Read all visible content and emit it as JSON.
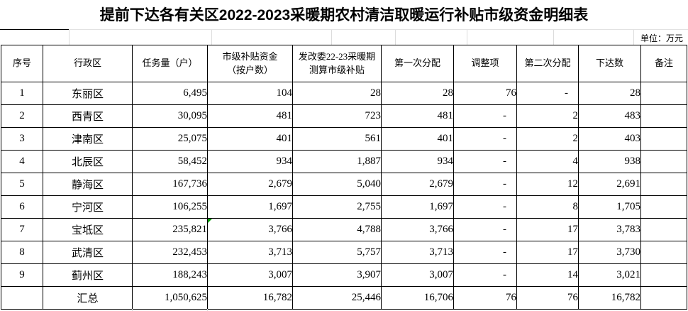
{
  "title": "提前下达各有关区2022-2023采暖期农村清洁取暖运行补贴市级资金明细表",
  "unit_label": "单位：万元",
  "table": {
    "columns": [
      "序号",
      "行政区",
      "任务量（户）",
      "市级补贴资金\n（按户数）",
      "发改委22-23采暖期\n测算市级补贴",
      "第一次分配",
      "调整项",
      "第二次分配",
      "下达数",
      "备注"
    ],
    "rows": [
      [
        "1",
        "东丽区",
        "6,495",
        "104",
        "28",
        "28",
        "76",
        "-",
        "28",
        ""
      ],
      [
        "2",
        "西青区",
        "30,095",
        "481",
        "723",
        "481",
        "-",
        "2",
        "483",
        ""
      ],
      [
        "3",
        "津南区",
        "25,075",
        "401",
        "561",
        "401",
        "-",
        "2",
        "403",
        ""
      ],
      [
        "4",
        "北辰区",
        "58,452",
        "934",
        "1,887",
        "934",
        "-",
        "4",
        "938",
        ""
      ],
      [
        "5",
        "静海区",
        "167,736",
        "2,679",
        "5,040",
        "2,679",
        "-",
        "12",
        "2,691",
        ""
      ],
      [
        "6",
        "宁河区",
        "106,255",
        "1,697",
        "2,755",
        "1,697",
        "-",
        "8",
        "1,705",
        ""
      ],
      [
        "7",
        "宝坻区",
        "235,821",
        "3,766",
        "4,788",
        "3,766",
        "-",
        "17",
        "3,783",
        ""
      ],
      [
        "8",
        "武清区",
        "232,453",
        "3,713",
        "5,757",
        "3,713",
        "-",
        "17",
        "3,730",
        ""
      ],
      [
        "9",
        "蓟州区",
        "188,243",
        "3,007",
        "3,907",
        "3,007",
        "-",
        "14",
        "3,021",
        ""
      ]
    ],
    "summary_row": [
      "",
      "汇总",
      "1,050,625",
      "16,782",
      "25,446",
      "16,706",
      "76",
      "76",
      "16,782",
      ""
    ],
    "error_marker": {
      "row_index": 6,
      "col_index": 3,
      "color": "#00A000"
    }
  }
}
